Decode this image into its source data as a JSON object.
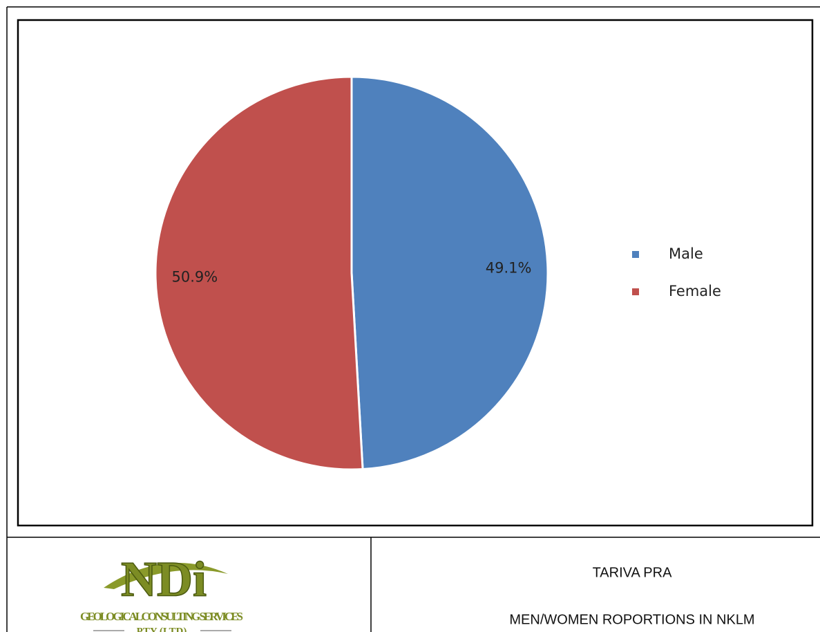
{
  "chart_data": {
    "type": "pie",
    "categories": [
      "Male",
      "Female"
    ],
    "values": [
      49.1,
      50.9
    ],
    "value_labels": [
      "49.1%",
      "50.9%"
    ],
    "colors": [
      "#4f81bd",
      "#c0504d"
    ],
    "legend": "right"
  },
  "footer": {
    "logo": {
      "mark": "NDi",
      "name": "GEOLOGICAL CONSULTING SERVICES",
      "suffix": "PTY (LTD)"
    },
    "title": "TARIVA PRA",
    "subtitle": "MEN/WOMEN ROPORTIONS IN NKLM"
  }
}
